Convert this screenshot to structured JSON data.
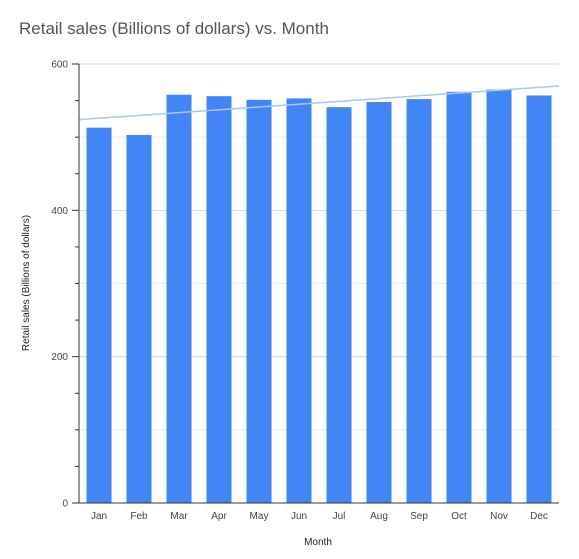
{
  "chart_data": {
    "type": "bar",
    "title": "Retail sales (Billions of dollars) vs. Month",
    "xlabel": "Month",
    "ylabel": "Retail sales (Billions of dollars)",
    "categories": [
      "Jan",
      "Feb",
      "Mar",
      "Apr",
      "May",
      "Jun",
      "Jul",
      "Aug",
      "Sep",
      "Oct",
      "Nov",
      "Dec"
    ],
    "series": [
      {
        "values": [
          513,
          503,
          558,
          556,
          551,
          553,
          541,
          548,
          552,
          562,
          565,
          557
        ],
        "color": "#4285f4"
      }
    ],
    "trendline": {
      "type": "linear",
      "start": 524,
      "end": 570,
      "color": "#a8c7f5"
    },
    "ylim": [
      0,
      600
    ],
    "yticks": [
      0,
      200,
      400,
      600
    ],
    "grid": true,
    "legend": "none"
  }
}
